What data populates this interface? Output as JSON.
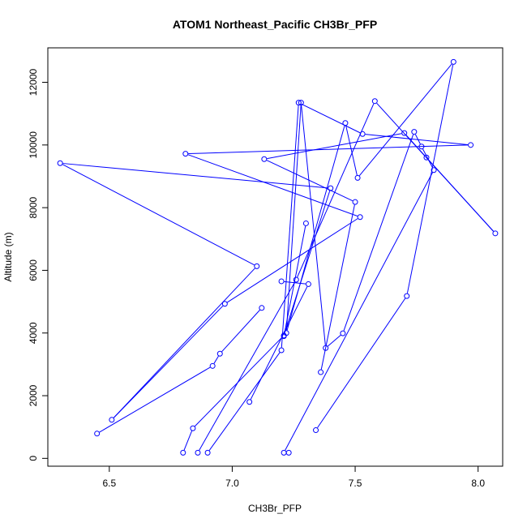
{
  "chart_data": {
    "type": "line",
    "title": "ATOM1 Northeast_Pacific CH3Br_PFP",
    "xlabel": "CH3Br_PFP",
    "ylabel": "Altitude (m)",
    "xlim": [
      6.25,
      8.1
    ],
    "ylim": [
      -250,
      13100
    ],
    "xticks": [
      6.5,
      7.0,
      7.5,
      8.0
    ],
    "xtick_labels": [
      "6.5",
      "7.0",
      "7.5",
      "8.0"
    ],
    "yticks": [
      0,
      2000,
      4000,
      6000,
      8000,
      10000,
      12000
    ],
    "ytick_labels": [
      "0",
      "2000",
      "4000",
      "6000",
      "8000",
      "10000",
      "12000"
    ],
    "grid": false,
    "marker": "open-circle",
    "line_color": "#0000ff",
    "series": [
      {
        "x": [
          7.34,
          7.71,
          7.9,
          7.51,
          7.46,
          7.22,
          7.28,
          7.38,
          7.45,
          7.74,
          7.77,
          7.82,
          7.21,
          7.23
        ],
        "y": [
          900,
          5180,
          12650,
          8950,
          10700,
          4000,
          11350,
          3520,
          3990,
          10420,
          9950,
          9200,
          180,
          180
        ]
      },
      {
        "x": [
          7.36,
          7.5,
          7.13,
          7.7,
          7.79,
          8.07,
          7.58,
          7.26,
          6.86
        ],
        "y": [
          2750,
          8180,
          9550,
          10380,
          9600,
          7180,
          11400,
          5700,
          180
        ]
      },
      {
        "x": [
          6.9,
          7.2,
          7.27,
          7.53,
          7.97,
          6.81,
          7.52,
          6.97,
          6.51,
          7.1,
          6.3,
          7.4,
          7.21,
          6.84,
          6.8
        ],
        "y": [
          180,
          3450,
          11350,
          10350,
          10000,
          9720,
          7700,
          4930,
          1230,
          6130,
          9420,
          8620,
          3920,
          960,
          180
        ]
      },
      {
        "x": [
          7.07,
          7.31,
          7.2
        ],
        "y": [
          1800,
          5560,
          5650
        ]
      },
      {
        "x": [
          6.45,
          6.92,
          6.95,
          7.12
        ],
        "y": [
          790,
          2950,
          3340,
          4800
        ]
      },
      {
        "x": [
          7.21,
          7.3
        ],
        "y": [
          3900,
          7500
        ]
      }
    ]
  }
}
